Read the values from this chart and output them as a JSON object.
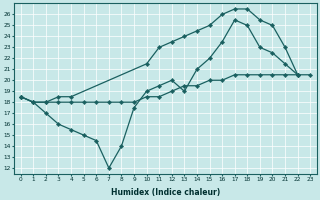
{
  "xlabel": "Humidex (Indice chaleur)",
  "bg_color": "#c8e8e8",
  "line_color": "#1a6060",
  "grid_color": "#a8d0d0",
  "xlim": [
    -0.5,
    23.5
  ],
  "ylim": [
    11.5,
    27
  ],
  "yticks": [
    12,
    13,
    14,
    15,
    16,
    17,
    18,
    19,
    20,
    21,
    22,
    23,
    24,
    25,
    26
  ],
  "xticks": [
    0,
    1,
    2,
    3,
    4,
    5,
    6,
    7,
    8,
    9,
    10,
    11,
    12,
    13,
    14,
    15,
    16,
    17,
    18,
    19,
    20,
    21,
    22,
    23
  ],
  "series": [
    {
      "x": [
        0,
        1,
        2,
        3,
        4,
        5,
        6,
        7,
        8,
        9,
        10,
        11,
        12,
        13,
        14,
        15,
        16,
        17,
        18,
        19,
        20,
        21,
        22,
        23
      ],
      "y": [
        18.5,
        18.0,
        18.0,
        18.0,
        18.0,
        18.0,
        18.0,
        18.0,
        18.0,
        18.0,
        18.5,
        18.5,
        19.0,
        19.5,
        19.5,
        20.0,
        20.0,
        20.5,
        20.5,
        20.5,
        20.5,
        20.5,
        20.5,
        20.5
      ]
    },
    {
      "x": [
        0,
        1,
        2,
        3,
        4,
        5,
        6,
        7,
        8,
        9,
        10,
        11,
        12,
        13,
        14,
        15,
        16,
        17,
        18,
        19,
        20,
        21,
        22
      ],
      "y": [
        18.5,
        18.0,
        17.0,
        16.0,
        15.5,
        15.0,
        14.5,
        12.0,
        14.0,
        17.5,
        19.0,
        19.5,
        20.0,
        19.0,
        21.0,
        22.0,
        23.5,
        25.5,
        25.0,
        23.0,
        22.5,
        21.5,
        20.5
      ]
    },
    {
      "x": [
        0,
        1,
        2,
        3,
        4,
        10,
        11,
        12,
        13,
        14,
        15,
        16,
        17,
        18,
        19,
        20,
        21,
        22
      ],
      "y": [
        18.5,
        18.0,
        18.0,
        18.5,
        18.5,
        21.5,
        23.0,
        23.5,
        24.0,
        24.5,
        25.0,
        26.0,
        26.5,
        26.5,
        25.5,
        25.0,
        23.0,
        20.5
      ]
    }
  ]
}
